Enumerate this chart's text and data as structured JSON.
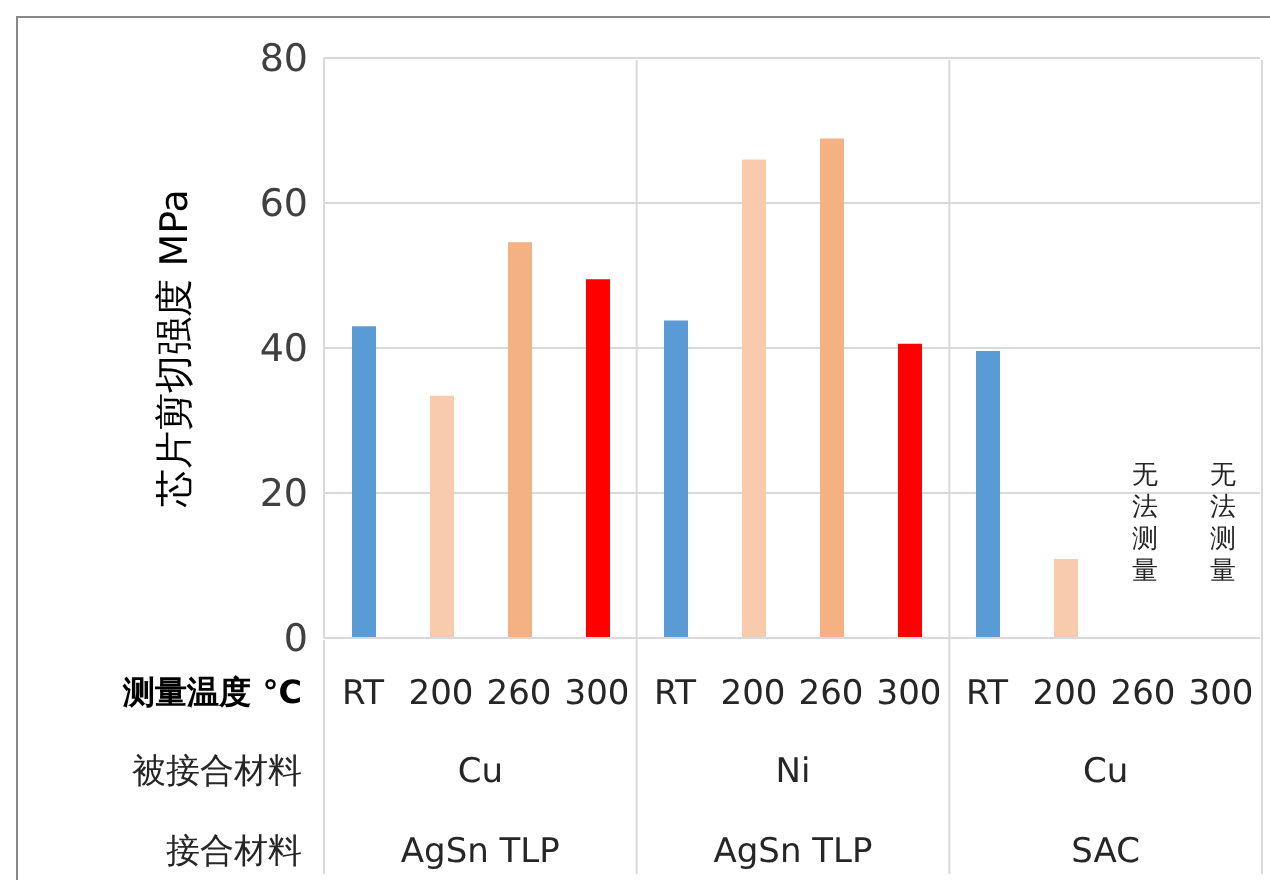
{
  "chart_data": {
    "type": "bar",
    "ylabel": "芯片剪切强度  MPa",
    "xlabel": "测量温度 °C",
    "categories": [
      "RT",
      "200",
      "260",
      "300",
      "RT",
      "200",
      "260",
      "300",
      "RT",
      "200",
      "260",
      "300"
    ],
    "values": [
      43.0,
      33.4,
      54.6,
      49.5,
      43.8,
      66.0,
      68.9,
      40.6,
      39.6,
      10.9,
      null,
      null
    ],
    "colors": [
      "#5b9bd5",
      "#f8cbad",
      "#f4b183",
      "#ff0000",
      "#5b9bd5",
      "#f8cbad",
      "#f4b183",
      "#ff0000",
      "#5b9bd5",
      "#f8cbad",
      "#f4b183",
      "#ff0000"
    ],
    "ylim": [
      0,
      80
    ],
    "yticks": [
      0,
      20,
      40,
      60,
      80
    ],
    "grid": "y",
    "legend": false,
    "annotations": [
      "被接合材料",
      "接合材料",
      "Cu",
      "Ni",
      "Cu",
      "AgSn TLP",
      "AgSn TLP",
      "SAC",
      "无法测量",
      "无法测量"
    ]
  }
}
